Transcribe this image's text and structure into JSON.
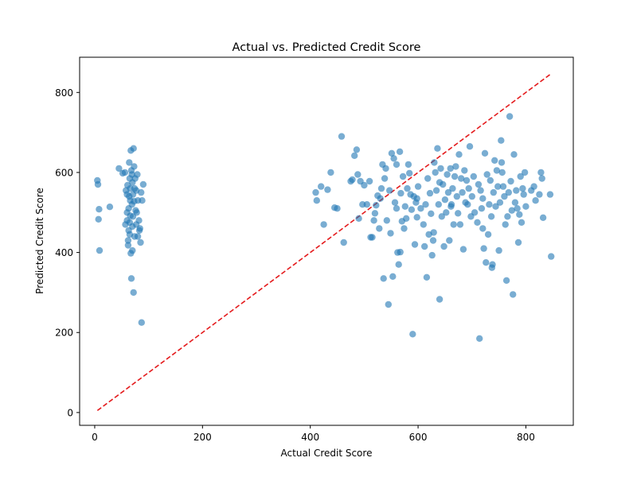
{
  "chart_data": {
    "type": "scatter",
    "title": "Actual vs. Predicted Credit Score",
    "xlabel": "Actual Credit Score",
    "ylabel": "Predicted Credit Score",
    "xlim": [
      -28,
      888
    ],
    "ylim": [
      -32,
      888
    ],
    "xticks": [
      0,
      200,
      400,
      600,
      800
    ],
    "yticks": [
      0,
      200,
      400,
      600,
      800
    ],
    "grid": false,
    "legend": "none",
    "colors": {
      "points": "#1f77b4",
      "reference_line": "#e41a1c"
    },
    "reference_line": {
      "from": [
        5,
        5
      ],
      "to": [
        847,
        847
      ],
      "style": "dashed"
    },
    "series": [
      {
        "values": [
          [
            5,
            580
          ],
          [
            6,
            570
          ],
          [
            7,
            483
          ],
          [
            8,
            508
          ],
          [
            9,
            405
          ],
          [
            28,
            514
          ],
          [
            45,
            610
          ],
          [
            52,
            598
          ],
          [
            56,
            600
          ],
          [
            58,
            555
          ],
          [
            60,
            545
          ],
          [
            60,
            480
          ],
          [
            60,
            500
          ],
          [
            62,
            418
          ],
          [
            62,
            430
          ],
          [
            63,
            455
          ],
          [
            63,
            510
          ],
          [
            64,
            540
          ],
          [
            64,
            625
          ],
          [
            65,
            585
          ],
          [
            65,
            445
          ],
          [
            65,
            475
          ],
          [
            66,
            530
          ],
          [
            66,
            560
          ],
          [
            67,
            398
          ],
          [
            67,
            655
          ],
          [
            68,
            335
          ],
          [
            68,
            605
          ],
          [
            69,
            520
          ],
          [
            69,
            595
          ],
          [
            70,
            465
          ],
          [
            70,
            405
          ],
          [
            70,
            575
          ],
          [
            71,
            545
          ],
          [
            71,
            490
          ],
          [
            72,
            300
          ],
          [
            72,
            660
          ],
          [
            73,
            615
          ],
          [
            74,
            440
          ],
          [
            74,
            560
          ],
          [
            75,
            585
          ],
          [
            76,
            505
          ],
          [
            77,
            470
          ],
          [
            77,
            555
          ],
          [
            78,
            500
          ],
          [
            79,
            595
          ],
          [
            80,
            530
          ],
          [
            80,
            440
          ],
          [
            82,
            480
          ],
          [
            83,
            455
          ],
          [
            84,
            460
          ],
          [
            85,
            425
          ],
          [
            86,
            550
          ],
          [
            87,
            225
          ],
          [
            88,
            530
          ],
          [
            90,
            570
          ],
          [
            57,
            470
          ],
          [
            61,
            568
          ],
          [
            66,
            492
          ],
          [
            73,
            528
          ],
          [
            410,
            550
          ],
          [
            412,
            530
          ],
          [
            420,
            565
          ],
          [
            425,
            470
          ],
          [
            432,
            557
          ],
          [
            438,
            600
          ],
          [
            445,
            512
          ],
          [
            450,
            510
          ],
          [
            458,
            690
          ],
          [
            462,
            425
          ],
          [
            475,
            578
          ],
          [
            478,
            582
          ],
          [
            482,
            642
          ],
          [
            486,
            657
          ],
          [
            488,
            595
          ],
          [
            490,
            485
          ],
          [
            493,
            578
          ],
          [
            497,
            520
          ],
          [
            500,
            568
          ],
          [
            505,
            520
          ],
          [
            510,
            578
          ],
          [
            512,
            438
          ],
          [
            515,
            438
          ],
          [
            518,
            480
          ],
          [
            520,
            498
          ],
          [
            522,
            518
          ],
          [
            525,
            542
          ],
          [
            528,
            460
          ],
          [
            530,
            535
          ],
          [
            532,
            560
          ],
          [
            534,
            620
          ],
          [
            536,
            335
          ],
          [
            538,
            585
          ],
          [
            540,
            610
          ],
          [
            542,
            480
          ],
          [
            545,
            270
          ],
          [
            547,
            555
          ],
          [
            549,
            448
          ],
          [
            551,
            648
          ],
          [
            553,
            340
          ],
          [
            555,
            635
          ],
          [
            557,
            525
          ],
          [
            560,
            620
          ],
          [
            562,
            400
          ],
          [
            564,
            370
          ],
          [
            566,
            652
          ],
          [
            568,
            548
          ],
          [
            570,
            478
          ],
          [
            572,
            590
          ],
          [
            574,
            460
          ],
          [
            576,
            515
          ],
          [
            578,
            485
          ],
          [
            580,
            560
          ],
          [
            582,
            620
          ],
          [
            584,
            598
          ],
          [
            586,
            545
          ],
          [
            588,
            507
          ],
          [
            590,
            196
          ],
          [
            592,
            540
          ],
          [
            594,
            420
          ],
          [
            596,
            525
          ],
          [
            598,
            488
          ],
          [
            600,
            565
          ],
          [
            605,
            510
          ],
          [
            610,
            470
          ],
          [
            612,
            415
          ],
          [
            614,
            520
          ],
          [
            616,
            338
          ],
          [
            618,
            585
          ],
          [
            620,
            445
          ],
          [
            622,
            548
          ],
          [
            624,
            497
          ],
          [
            626,
            393
          ],
          [
            628,
            430
          ],
          [
            630,
            625
          ],
          [
            632,
            600
          ],
          [
            634,
            555
          ],
          [
            636,
            660
          ],
          [
            638,
            520
          ],
          [
            640,
            283
          ],
          [
            642,
            610
          ],
          [
            644,
            490
          ],
          [
            646,
            570
          ],
          [
            648,
            415
          ],
          [
            650,
            532
          ],
          [
            652,
            500
          ],
          [
            654,
            595
          ],
          [
            656,
            550
          ],
          [
            658,
            430
          ],
          [
            660,
            610
          ],
          [
            662,
            520
          ],
          [
            664,
            560
          ],
          [
            666,
            470
          ],
          [
            668,
            590
          ],
          [
            670,
            615
          ],
          [
            672,
            540
          ],
          [
            674,
            498
          ],
          [
            676,
            645
          ],
          [
            678,
            470
          ],
          [
            680,
            585
          ],
          [
            682,
            550
          ],
          [
            684,
            408
          ],
          [
            686,
            605
          ],
          [
            688,
            525
          ],
          [
            690,
            580
          ],
          [
            692,
            520
          ],
          [
            694,
            560
          ],
          [
            696,
            665
          ],
          [
            698,
            490
          ],
          [
            700,
            540
          ],
          [
            705,
            500
          ],
          [
            710,
            475
          ],
          [
            712,
            570
          ],
          [
            714,
            185
          ],
          [
            716,
            555
          ],
          [
            718,
            510
          ],
          [
            720,
            460
          ],
          [
            722,
            410
          ],
          [
            724,
            648
          ],
          [
            726,
            375
          ],
          [
            728,
            595
          ],
          [
            730,
            445
          ],
          [
            732,
            520
          ],
          [
            734,
            580
          ],
          [
            736,
            490
          ],
          [
            738,
            370
          ],
          [
            740,
            550
          ],
          [
            742,
            630
          ],
          [
            744,
            515
          ],
          [
            746,
            605
          ],
          [
            748,
            565
          ],
          [
            750,
            405
          ],
          [
            752,
            525
          ],
          [
            754,
            680
          ],
          [
            756,
            600
          ],
          [
            758,
            565
          ],
          [
            760,
            540
          ],
          [
            762,
            470
          ],
          [
            764,
            330
          ],
          [
            766,
            490
          ],
          [
            768,
            550
          ],
          [
            770,
            740
          ],
          [
            772,
            578
          ],
          [
            774,
            505
          ],
          [
            776,
            295
          ],
          [
            778,
            645
          ],
          [
            780,
            525
          ],
          [
            782,
            555
          ],
          [
            784,
            510
          ],
          [
            786,
            425
          ],
          [
            788,
            495
          ],
          [
            790,
            590
          ],
          [
            792,
            475
          ],
          [
            794,
            560
          ],
          [
            796,
            545
          ],
          [
            798,
            600
          ],
          [
            800,
            515
          ],
          [
            810,
            555
          ],
          [
            815,
            565
          ],
          [
            818,
            530
          ],
          [
            825,
            545
          ],
          [
            828,
            600
          ],
          [
            830,
            585
          ],
          [
            832,
            487
          ],
          [
            845,
            545
          ],
          [
            847,
            390
          ],
          [
            567,
            401
          ],
          [
            598,
            535
          ],
          [
            629,
            450
          ],
          [
            661,
            515
          ],
          [
            703,
            590
          ],
          [
            737,
            362
          ],
          [
            755,
            625
          ],
          [
            560,
            510
          ],
          [
            640,
            575
          ],
          [
            720,
            535
          ]
        ]
      }
    ]
  }
}
